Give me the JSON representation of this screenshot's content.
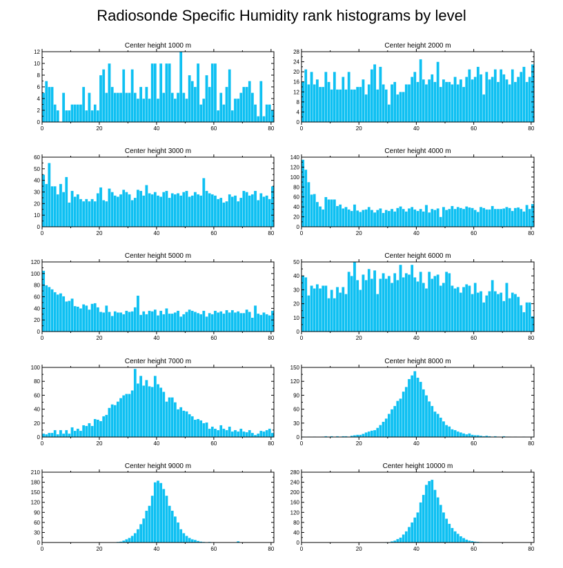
{
  "figure": {
    "title": "Radiosonde Specific Humidity rank histograms by level"
  },
  "colors": {
    "bar": "#0ec0f2",
    "frame": "#000000",
    "background": "#ffffff"
  },
  "chart_data": [
    {
      "type": "bar",
      "title": "Center height 1000 m",
      "xlim": [
        0,
        81
      ],
      "ylim": [
        0,
        12
      ],
      "xticks": [
        0,
        20,
        40,
        60,
        80
      ],
      "yticks": [
        0,
        2,
        4,
        6,
        8,
        10,
        12
      ],
      "values": [
        5,
        7,
        6,
        6,
        3,
        2,
        0,
        5,
        2,
        2,
        3,
        3,
        3,
        3,
        6,
        2,
        5,
        2,
        3,
        2,
        8,
        9,
        5,
        10,
        6,
        5,
        5,
        5,
        9,
        5,
        5,
        9,
        5,
        4,
        6,
        4,
        6,
        4,
        10,
        10,
        4,
        10,
        5,
        10,
        10,
        5,
        4,
        5,
        12,
        5,
        4,
        8,
        7,
        6,
        10,
        3,
        4,
        8,
        6,
        10,
        10,
        2,
        5,
        3,
        6,
        9,
        2,
        4,
        4,
        5,
        6,
        6,
        7,
        5,
        3,
        1,
        7,
        1,
        3,
        3,
        2
      ]
    },
    {
      "type": "bar",
      "title": "Center height 2000 m",
      "xlim": [
        0,
        81
      ],
      "ylim": [
        0,
        28
      ],
      "xticks": [
        0,
        20,
        40,
        60,
        80
      ],
      "yticks": [
        0,
        4,
        8,
        12,
        16,
        20,
        24,
        28
      ],
      "values": [
        16,
        21,
        15,
        20,
        15,
        17,
        14,
        14,
        20,
        16,
        13,
        20,
        13,
        13,
        18,
        13,
        20,
        13,
        13,
        14,
        14,
        17,
        11,
        15,
        21,
        23,
        13,
        22,
        15,
        13,
        7,
        15,
        16,
        11,
        12,
        12,
        15,
        15,
        18,
        20,
        16,
        25,
        17,
        15,
        17,
        19,
        16,
        24,
        14,
        17,
        16,
        16,
        15,
        18,
        15,
        17,
        14,
        18,
        21,
        17,
        18,
        22,
        19,
        11,
        20,
        17,
        18,
        21,
        16,
        21,
        19,
        17,
        15,
        21,
        16,
        18,
        20,
        22,
        16,
        18,
        23
      ]
    },
    {
      "type": "bar",
      "title": "Center height 3000 m",
      "xlim": [
        0,
        81
      ],
      "ylim": [
        0,
        60
      ],
      "xticks": [
        0,
        20,
        40,
        60,
        80
      ],
      "yticks": [
        0,
        10,
        20,
        30,
        40,
        50,
        60
      ],
      "values": [
        45,
        37,
        55,
        35,
        35,
        28,
        37,
        30,
        43,
        21,
        31,
        26,
        28,
        24,
        22,
        24,
        22,
        24,
        22,
        29,
        34,
        23,
        22,
        33,
        30,
        27,
        26,
        28,
        32,
        30,
        28,
        23,
        25,
        32,
        31,
        27,
        36,
        29,
        28,
        30,
        27,
        26,
        30,
        31,
        25,
        29,
        28,
        29,
        27,
        30,
        31,
        26,
        27,
        30,
        28,
        27,
        42,
        31,
        29,
        28,
        27,
        24,
        25,
        21,
        22,
        28,
        26,
        27,
        22,
        25,
        31,
        30,
        27,
        28,
        31,
        23,
        29,
        26,
        27,
        24,
        35
      ]
    },
    {
      "type": "bar",
      "title": "Center height 4000 m",
      "xlim": [
        0,
        81
      ],
      "ylim": [
        0,
        140
      ],
      "xticks": [
        0,
        20,
        40,
        60,
        80
      ],
      "yticks": [
        0,
        20,
        40,
        60,
        80,
        100,
        120,
        140
      ],
      "values": [
        135,
        115,
        90,
        65,
        66,
        50,
        41,
        35,
        60,
        55,
        55,
        55,
        42,
        45,
        37,
        40,
        35,
        32,
        45,
        33,
        30,
        34,
        35,
        40,
        34,
        29,
        34,
        37,
        28,
        34,
        32,
        36,
        31,
        38,
        41,
        36,
        31,
        37,
        40,
        35,
        32,
        36,
        31,
        44,
        29,
        36,
        34,
        37,
        20,
        40,
        34,
        36,
        42,
        36,
        40,
        38,
        36,
        41,
        39,
        38,
        34,
        30,
        40,
        38,
        35,
        35,
        42,
        36,
        36,
        36,
        37,
        40,
        38,
        32,
        38,
        39,
        36,
        31,
        44,
        36,
        46
      ]
    },
    {
      "type": "bar",
      "title": "Center height 5000 m",
      "xlim": [
        0,
        81
      ],
      "ylim": [
        0,
        120
      ],
      "xticks": [
        0,
        20,
        40,
        60,
        80
      ],
      "yticks": [
        0,
        20,
        40,
        60,
        80,
        100,
        120
      ],
      "values": [
        105,
        80,
        77,
        73,
        68,
        64,
        66,
        61,
        52,
        53,
        57,
        44,
        43,
        40,
        47,
        45,
        38,
        48,
        49,
        42,
        34,
        33,
        45,
        34,
        27,
        35,
        33,
        33,
        30,
        36,
        34,
        35,
        42,
        62,
        29,
        35,
        30,
        36,
        35,
        38,
        28,
        36,
        30,
        40,
        31,
        31,
        33,
        36,
        26,
        30,
        34,
        38,
        36,
        34,
        32,
        30,
        36,
        26,
        32,
        30,
        36,
        33,
        35,
        31,
        37,
        33,
        37,
        33,
        35,
        32,
        32,
        38,
        34,
        24,
        45,
        31,
        29,
        33,
        30,
        28,
        36
      ]
    },
    {
      "type": "bar",
      "title": "Center height 6000 m",
      "xlim": [
        0,
        81
      ],
      "ylim": [
        0,
        50
      ],
      "xticks": [
        0,
        20,
        40,
        60,
        80
      ],
      "yticks": [
        0,
        10,
        20,
        30,
        40,
        50
      ],
      "values": [
        40,
        39,
        26,
        33,
        31,
        34,
        31,
        33,
        33,
        24,
        30,
        24,
        32,
        28,
        32,
        27,
        43,
        40,
        50,
        37,
        30,
        41,
        37,
        45,
        38,
        44,
        27,
        38,
        42,
        38,
        40,
        35,
        42,
        37,
        48,
        39,
        42,
        41,
        48,
        39,
        36,
        43,
        35,
        31,
        43,
        38,
        40,
        41,
        33,
        35,
        43,
        42,
        33,
        31,
        32,
        28,
        32,
        34,
        33,
        27,
        35,
        28,
        29,
        21,
        26,
        29,
        37,
        29,
        27,
        28,
        22,
        35,
        24,
        28,
        27,
        25,
        19,
        14,
        21,
        21,
        11
      ]
    },
    {
      "type": "bar",
      "title": "Center height 7000 m",
      "xlim": [
        0,
        81
      ],
      "ylim": [
        0,
        100
      ],
      "xticks": [
        0,
        20,
        40,
        60,
        80
      ],
      "yticks": [
        0,
        20,
        40,
        60,
        80,
        100
      ],
      "values": [
        5,
        4,
        6,
        6,
        10,
        4,
        10,
        5,
        10,
        5,
        14,
        9,
        12,
        9,
        17,
        16,
        20,
        16,
        26,
        25,
        23,
        30,
        32,
        42,
        47,
        46,
        51,
        56,
        60,
        62,
        62,
        67,
        98,
        77,
        88,
        74,
        82,
        73,
        72,
        88,
        76,
        71,
        65,
        51,
        57,
        57,
        50,
        40,
        43,
        38,
        37,
        33,
        30,
        25,
        26,
        24,
        20,
        21,
        12,
        15,
        12,
        10,
        17,
        12,
        10,
        15,
        8,
        10,
        8,
        12,
        8,
        7,
        10,
        6,
        3,
        5,
        9,
        8,
        10,
        12,
        6
      ]
    },
    {
      "type": "bar",
      "title": "Center height 8000 m",
      "xlim": [
        0,
        81
      ],
      "ylim": [
        0,
        150
      ],
      "xticks": [
        0,
        20,
        40,
        60,
        80
      ],
      "yticks": [
        0,
        30,
        60,
        90,
        120,
        150
      ],
      "values": [
        1,
        0,
        1,
        0,
        1,
        0,
        0,
        1,
        2,
        1,
        2,
        0,
        2,
        1,
        2,
        2,
        1,
        3,
        4,
        5,
        5,
        7,
        10,
        12,
        14,
        15,
        20,
        26,
        33,
        40,
        50,
        60,
        67,
        78,
        83,
        98,
        108,
        125,
        133,
        142,
        128,
        119,
        103,
        90,
        77,
        67,
        55,
        50,
        42,
        34,
        26,
        23,
        17,
        15,
        12,
        10,
        8,
        6,
        8,
        5,
        4,
        4,
        3,
        2,
        3,
        2,
        1,
        2,
        1,
        0,
        2,
        1,
        1,
        0,
        1,
        0,
        0,
        1,
        0,
        0,
        1
      ]
    },
    {
      "type": "bar",
      "title": "Center height 9000 m",
      "xlim": [
        0,
        81
      ],
      "ylim": [
        0,
        210
      ],
      "xticks": [
        0,
        20,
        40,
        60,
        80
      ],
      "yticks": [
        0,
        30,
        60,
        90,
        120,
        150,
        180,
        210
      ],
      "values": [
        0,
        0,
        0,
        0,
        0,
        0,
        0,
        0,
        0,
        0,
        0,
        0,
        0,
        0,
        0,
        0,
        0,
        0,
        0,
        0,
        1,
        0,
        0,
        1,
        1,
        1,
        2,
        3,
        6,
        10,
        14,
        20,
        28,
        40,
        55,
        72,
        95,
        110,
        140,
        180,
        185,
        178,
        160,
        140,
        110,
        95,
        78,
        60,
        40,
        28,
        20,
        14,
        10,
        8,
        5,
        3,
        2,
        1,
        2,
        1,
        1,
        1,
        0,
        0,
        1,
        0,
        0,
        0,
        4,
        1,
        0,
        0,
        0,
        0,
        0,
        0,
        0,
        0,
        0,
        0,
        0
      ]
    },
    {
      "type": "bar",
      "title": "Center height 10000 m",
      "xlim": [
        0,
        81
      ],
      "ylim": [
        0,
        280
      ],
      "xticks": [
        0,
        20,
        40,
        60,
        80
      ],
      "yticks": [
        0,
        40,
        80,
        120,
        160,
        200,
        240,
        280
      ],
      "values": [
        0,
        0,
        0,
        0,
        0,
        0,
        0,
        0,
        0,
        0,
        0,
        0,
        0,
        0,
        0,
        0,
        0,
        0,
        0,
        0,
        0,
        0,
        0,
        0,
        0,
        0,
        0,
        1,
        1,
        2,
        2,
        5,
        8,
        14,
        20,
        32,
        45,
        62,
        80,
        100,
        120,
        160,
        190,
        230,
        245,
        250,
        210,
        180,
        150,
        120,
        95,
        75,
        58,
        45,
        35,
        25,
        18,
        12,
        8,
        6,
        4,
        3,
        2,
        1,
        1,
        1,
        0,
        0,
        0,
        0,
        0,
        0,
        0,
        0,
        0,
        0,
        0,
        0,
        0,
        0,
        0
      ]
    }
  ]
}
